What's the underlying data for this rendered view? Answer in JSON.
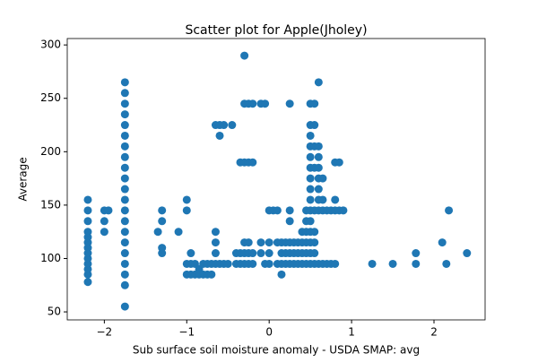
{
  "chart_data": {
    "type": "scatter",
    "title": "Scatter plot for Apple(Jholey)",
    "x_label": "Sub surface soil moisture anomaly - USDA SMAP: avg",
    "y_label": "Average",
    "color": "#1f77b4",
    "xlim": [
      -2.45,
      2.62
    ],
    "ylim": [
      42.5,
      306
    ],
    "xticks": [
      {
        "value": -2,
        "label": "−2"
      },
      {
        "value": -1,
        "label": "−1"
      },
      0,
      1,
      2
    ],
    "yticks": [
      50,
      100,
      150,
      200,
      250,
      300
    ],
    "x": [
      -2.2,
      -2.2,
      -2.2,
      -2.2,
      -2.2,
      -2.2,
      -2.2,
      -2.2,
      -2.2,
      -2.2,
      -2.2,
      -2.2,
      -2.2,
      -2.0,
      -2.0,
      -2.0,
      -1.95,
      -1.75,
      -1.75,
      -1.75,
      -1.75,
      -1.75,
      -1.75,
      -1.75,
      -1.75,
      -1.75,
      -1.75,
      -1.75,
      -1.75,
      -1.75,
      -1.75,
      -1.75,
      -1.75,
      -1.75,
      -1.75,
      -1.75,
      -1.75,
      -1.75,
      -1.35,
      -1.3,
      -1.3,
      -1.3,
      -1.3,
      -1.1,
      -1.0,
      -1.0,
      -1.0,
      -1.0,
      -0.95,
      -0.95,
      -0.95,
      -0.9,
      -0.9,
      -0.85,
      -0.85,
      -0.8,
      -0.8,
      -0.75,
      -0.75,
      -0.7,
      -0.7,
      -0.65,
      -0.65,
      -0.65,
      -0.65,
      -0.65,
      -0.6,
      -0.6,
      -0.6,
      -0.55,
      -0.55,
      -0.5,
      -0.45,
      -0.4,
      -0.4,
      -0.35,
      -0.35,
      -0.35,
      -0.3,
      -0.3,
      -0.3,
      -0.3,
      -0.3,
      -0.3,
      -0.25,
      -0.25,
      -0.25,
      -0.25,
      -0.25,
      -0.2,
      -0.2,
      -0.2,
      -0.2,
      -0.1,
      -0.1,
      -0.1,
      -0.05,
      -0.05,
      0,
      0,
      0,
      0,
      0.05,
      0.1,
      0.1,
      0.1,
      0.15,
      0.15,
      0.15,
      0.15,
      0.2,
      0.2,
      0.2,
      0.25,
      0.25,
      0.25,
      0.25,
      0.25,
      0.25,
      0.3,
      0.3,
      0.3,
      0.35,
      0.35,
      0.35,
      0.4,
      0.4,
      0.4,
      0.4,
      0.45,
      0.45,
      0.45,
      0.45,
      0.45,
      0.45,
      0.5,
      0.5,
      0.5,
      0.5,
      0.5,
      0.5,
      0.5,
      0.5,
      0.5,
      0.5,
      0.5,
      0.5,
      0.5,
      0.5,
      0.5,
      0.55,
      0.55,
      0.55,
      0.55,
      0.55,
      0.55,
      0.55,
      0.55,
      0.55,
      0.6,
      0.6,
      0.6,
      0.6,
      0.6,
      0.6,
      0.6,
      0.6,
      0.6,
      0.65,
      0.65,
      0.65,
      0.65,
      0.7,
      0.7,
      0.75,
      0.75,
      0.8,
      0.8,
      0.8,
      0.8,
      0.85,
      0.85,
      0.9,
      1.25,
      1.5,
      1.78,
      1.78,
      2.1,
      2.15,
      2.18,
      2.4
    ],
    "y": [
      78,
      85,
      90,
      95,
      100,
      105,
      110,
      115,
      120,
      125,
      135,
      145,
      155,
      125,
      135,
      145,
      145,
      55,
      75,
      85,
      95,
      105,
      115,
      125,
      135,
      145,
      155,
      165,
      175,
      185,
      195,
      205,
      215,
      225,
      235,
      245,
      255,
      265,
      125,
      105,
      110,
      135,
      145,
      125,
      85,
      95,
      145,
      155,
      85,
      95,
      105,
      85,
      95,
      85,
      90,
      85,
      95,
      85,
      95,
      85,
      95,
      95,
      105,
      115,
      125,
      225,
      95,
      215,
      225,
      95,
      225,
      95,
      225,
      95,
      105,
      95,
      105,
      190,
      95,
      105,
      115,
      190,
      245,
      290,
      95,
      105,
      115,
      190,
      245,
      95,
      105,
      190,
      245,
      105,
      115,
      245,
      95,
      245,
      95,
      105,
      115,
      145,
      145,
      95,
      115,
      145,
      85,
      95,
      105,
      115,
      95,
      105,
      115,
      95,
      105,
      115,
      135,
      145,
      245,
      95,
      105,
      115,
      95,
      105,
      115,
      95,
      105,
      115,
      125,
      95,
      105,
      115,
      125,
      135,
      145,
      95,
      105,
      115,
      125,
      135,
      145,
      155,
      165,
      175,
      185,
      195,
      205,
      215,
      225,
      245,
      95,
      105,
      115,
      125,
      145,
      185,
      205,
      225,
      245,
      95,
      145,
      155,
      165,
      175,
      185,
      195,
      205,
      265,
      95,
      145,
      155,
      175,
      95,
      145,
      95,
      145,
      95,
      145,
      155,
      190,
      145,
      190,
      145,
      95,
      95,
      95,
      105,
      115,
      95,
      145,
      105
    ]
  }
}
